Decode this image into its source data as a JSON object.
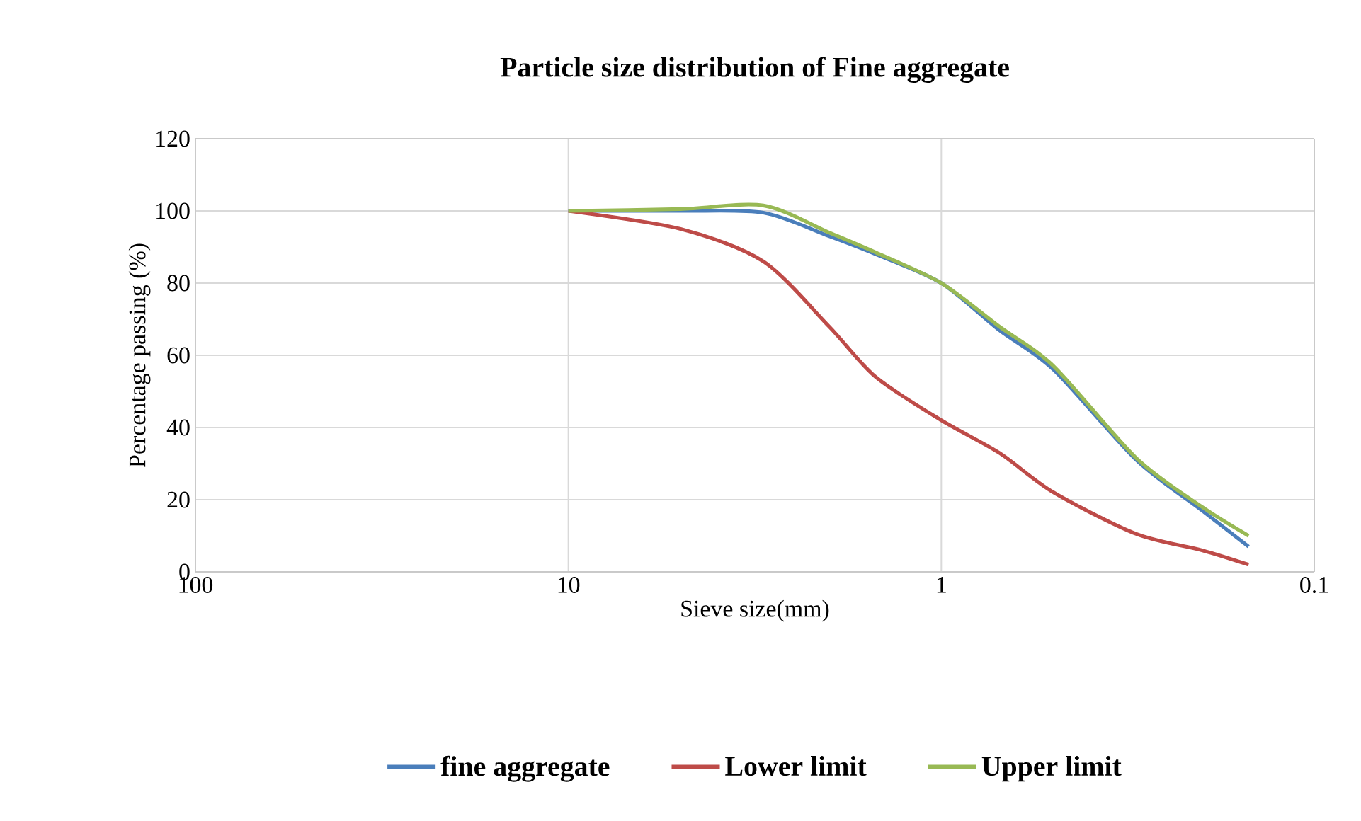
{
  "chart_data": {
    "type": "line",
    "title": "Particle size distribution of Fine aggregate",
    "xlabel": "Sieve size(mm)",
    "ylabel": "Percentage passing (%)",
    "log": "x",
    "xlim": [
      100,
      0.1
    ],
    "xticks": [
      100,
      10,
      1,
      0.1
    ],
    "ylim": [
      0,
      120
    ],
    "yticks": [
      0,
      20,
      40,
      60,
      80,
      100,
      120
    ],
    "grid": true,
    "legend": "bottom",
    "marker": "none",
    "line_style": "solid",
    "x": [
      10,
      5,
      3,
      2,
      1.5,
      1,
      0.7,
      0.5,
      0.3,
      0.2,
      0.15
    ],
    "series": [
      {
        "name": "fine aggregate",
        "color": "#4a7ebb",
        "values": [
          100,
          100,
          99.5,
          93,
          88,
          80,
          67,
          56,
          31,
          17,
          7
        ]
      },
      {
        "name": "Lower limit",
        "color": "#be4b48",
        "values": [
          100,
          95,
          86,
          68,
          54,
          42,
          33,
          22,
          10.5,
          6,
          2
        ]
      },
      {
        "name": "Upper limit",
        "color": "#98b954",
        "values": [
          100,
          100.5,
          101.5,
          94,
          88.5,
          80,
          68,
          57,
          31.5,
          18,
          10
        ]
      }
    ]
  }
}
